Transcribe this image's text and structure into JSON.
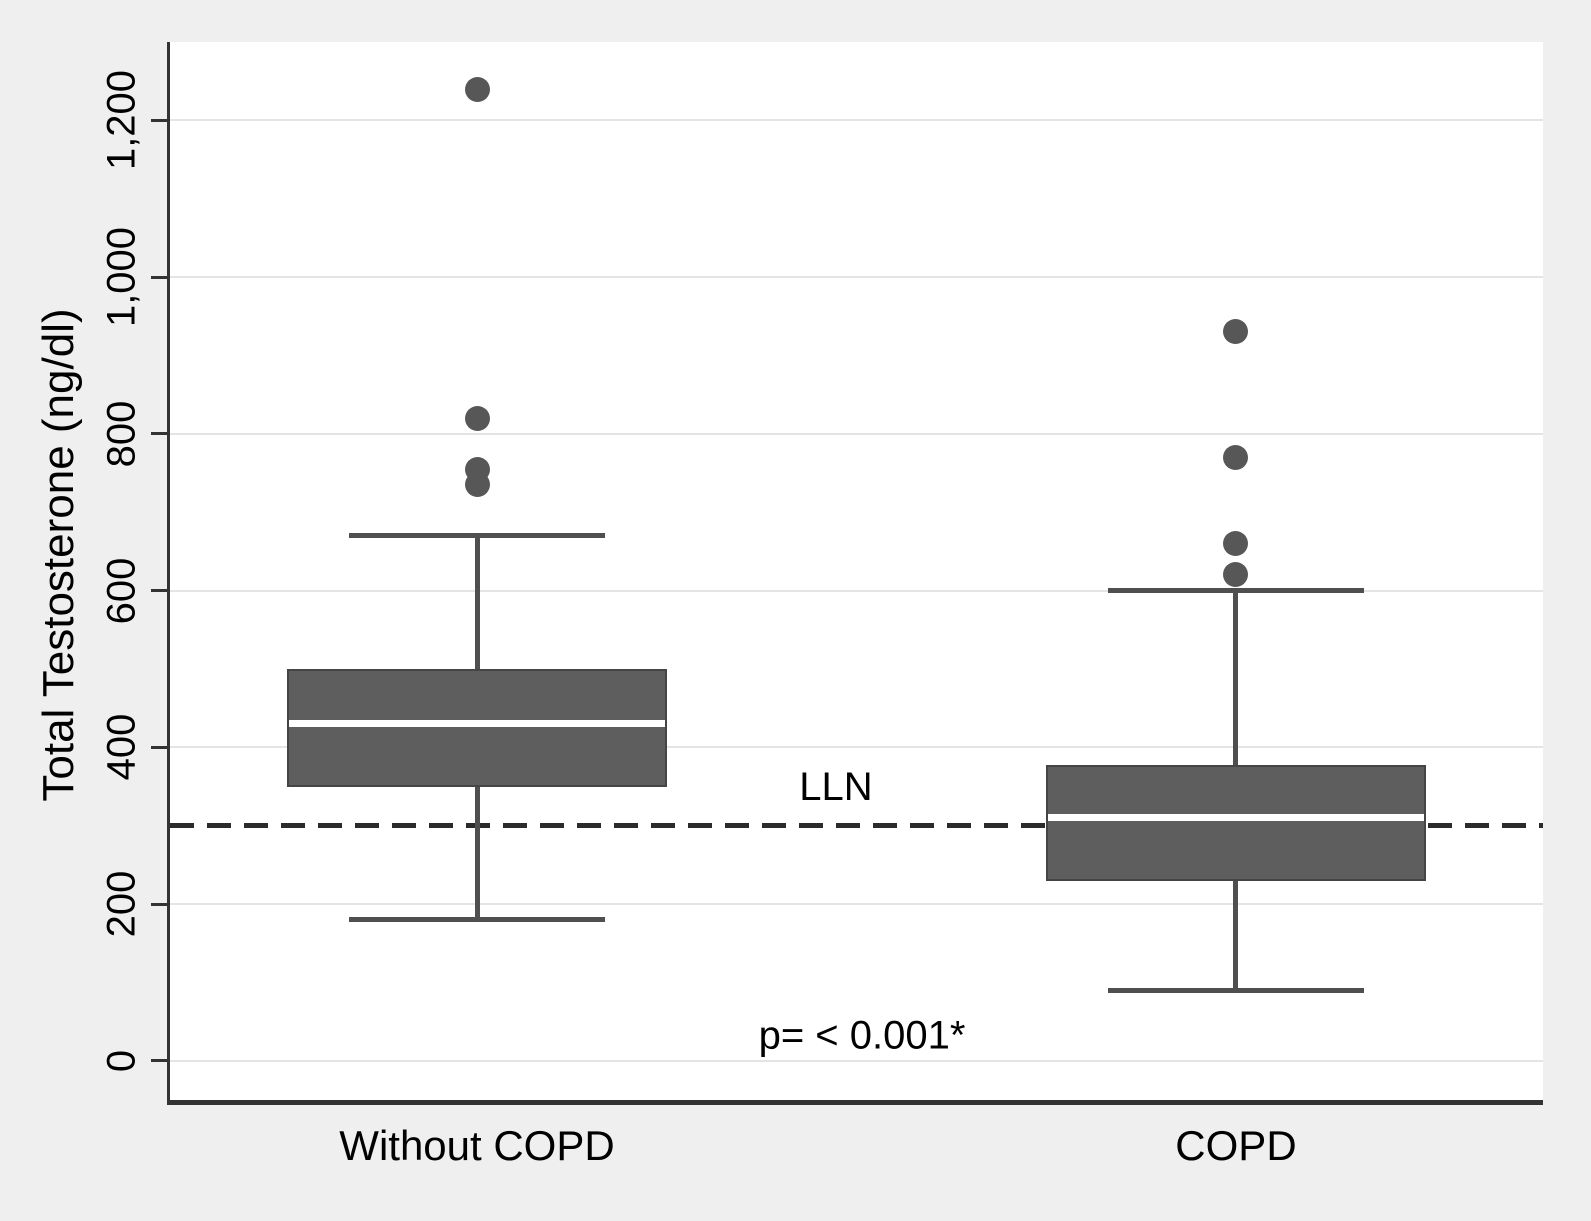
{
  "figure": {
    "background_color": "#efefef",
    "plot_background_color": "#ffffff"
  },
  "chart_data": {
    "type": "box",
    "title": "",
    "ylabel": "Total Testosterone (ng/dl)",
    "xlabel": "",
    "ylim": [
      -50,
      1300
    ],
    "grid": true,
    "yticks": [
      {
        "value": 0,
        "label": "0"
      },
      {
        "value": 200,
        "label": "200"
      },
      {
        "value": 400,
        "label": "400"
      },
      {
        "value": 600,
        "label": "600"
      },
      {
        "value": 800,
        "label": "800"
      },
      {
        "value": 1000,
        "label": "1,000"
      },
      {
        "value": 1200,
        "label": "1,200"
      }
    ],
    "categories": [
      "Without COPD",
      "COPD"
    ],
    "series": [
      {
        "name": "Without COPD",
        "whisker_low": 180,
        "q1": 350,
        "median": 430,
        "q3": 500,
        "whisker_high": 670,
        "outliers": [
          735,
          755,
          820,
          1240
        ]
      },
      {
        "name": "COPD",
        "whisker_low": 90,
        "q1": 230,
        "median": 310,
        "q3": 378,
        "whisker_high": 600,
        "outliers": [
          620,
          660,
          770,
          930
        ]
      }
    ],
    "reference_line": {
      "label": "LLN",
      "value": 300,
      "style": "dashed"
    },
    "annotation": {
      "text": "p= < 0.001*",
      "value_y": 32
    },
    "colors": {
      "box_fill": "#5e5e5e",
      "box_border": "#454545",
      "whisker": "#4f4f4f",
      "median": "#ffffff",
      "outlier": "#575757",
      "gridline": "#e4e4e4",
      "axis": "#333333",
      "reference_line": "#2b2b2b",
      "text": "#000000"
    }
  }
}
